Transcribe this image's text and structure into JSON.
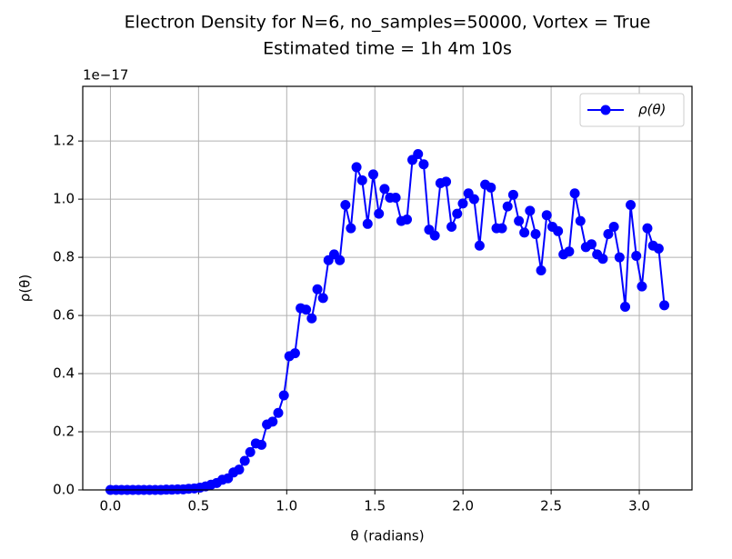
{
  "chart_data": {
    "type": "line",
    "title": "Electron Density for N=6, no_samples=50000, Vortex = True",
    "subtitle": "Estimated time = 1h 4m 10s",
    "x_label": "θ (radians)",
    "y_label": "ρ(θ)",
    "y_offset_label": "1e−17",
    "x": [
      0.0,
      0.032,
      0.063,
      0.095,
      0.127,
      0.159,
      0.19,
      0.222,
      0.254,
      0.286,
      0.317,
      0.349,
      0.381,
      0.413,
      0.444,
      0.476,
      0.508,
      0.54,
      0.571,
      0.603,
      0.635,
      0.667,
      0.698,
      0.73,
      0.762,
      0.793,
      0.825,
      0.857,
      0.888,
      0.92,
      0.952,
      0.984,
      1.015,
      1.047,
      1.079,
      1.11,
      1.142,
      1.174,
      1.206,
      1.237,
      1.269,
      1.301,
      1.333,
      1.364,
      1.396,
      1.428,
      1.459,
      1.491,
      1.523,
      1.555,
      1.586,
      1.618,
      1.65,
      1.682,
      1.713,
      1.745,
      1.777,
      1.808,
      1.84,
      1.872,
      1.904,
      1.935,
      1.967,
      1.999,
      2.031,
      2.063,
      2.094,
      2.126,
      2.158,
      2.19,
      2.221,
      2.253,
      2.285,
      2.317,
      2.348,
      2.38,
      2.412,
      2.443,
      2.475,
      2.507,
      2.539,
      2.57,
      2.602,
      2.634,
      2.666,
      2.697,
      2.729,
      2.761,
      2.793,
      2.824,
      2.856,
      2.888,
      2.92,
      2.951,
      2.983,
      3.015,
      3.046,
      3.078,
      3.11,
      3.142
    ],
    "series": [
      {
        "name": "ρ(θ)",
        "color": "#0000ff",
        "values": [
          0,
          0,
          0,
          0,
          0,
          0,
          0,
          0,
          0,
          0,
          0.001,
          0.001,
          0.002,
          0.002,
          0.004,
          0.005,
          0.008,
          0.012,
          0.018,
          0.024,
          0.035,
          0.04,
          0.06,
          0.07,
          0.1,
          0.13,
          0.16,
          0.155,
          0.225,
          0.235,
          0.265,
          0.325,
          0.46,
          0.47,
          0.625,
          0.62,
          0.59,
          0.69,
          0.66,
          0.79,
          0.81,
          0.79,
          0.98,
          0.9,
          1.11,
          1.065,
          0.915,
          1.085,
          0.95,
          1.035,
          1.005,
          1.005,
          0.925,
          0.93,
          1.135,
          1.155,
          1.12,
          0.895,
          0.875,
          1.055,
          1.06,
          0.905,
          0.95,
          0.985,
          1.02,
          1.0,
          0.84,
          1.05,
          1.04,
          0.9,
          0.9,
          0.975,
          1.015,
          0.925,
          0.885,
          0.96,
          0.88,
          0.755,
          0.945,
          0.905,
          0.89,
          0.81,
          0.82,
          1.02,
          0.925,
          0.835,
          0.845,
          0.81,
          0.795,
          0.88,
          0.905,
          0.8,
          0.63,
          0.98,
          0.805,
          0.7,
          0.9,
          0.84,
          0.83,
          0.635
        ]
      }
    ],
    "xlim": [
      -0.157,
      3.299
    ],
    "ylim": [
      0,
      1.388
    ],
    "xticks": [
      {
        "value": 0,
        "label": "0.0"
      },
      0.5,
      {
        "value": 1,
        "label": "1.0"
      },
      1.5,
      {
        "value": 2,
        "label": "2.0"
      },
      2.5,
      {
        "value": 3,
        "label": "3.0"
      }
    ],
    "yticks": [
      {
        "value": 0,
        "label": "0.0"
      },
      0.2,
      0.4,
      0.6,
      0.8,
      {
        "value": 1,
        "label": "1.0"
      },
      1.2
    ],
    "grid": true,
    "legend": "upper right"
  }
}
